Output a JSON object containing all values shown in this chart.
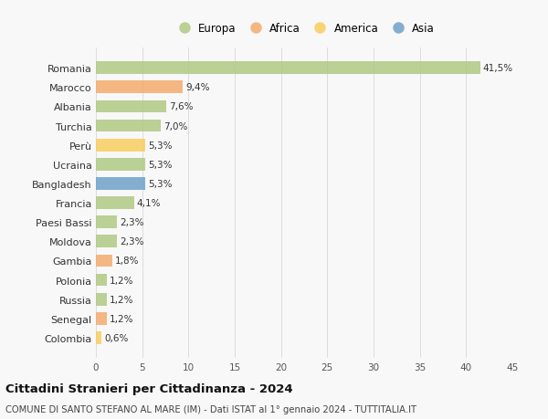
{
  "countries": [
    "Romania",
    "Marocco",
    "Albania",
    "Turchia",
    "Perù",
    "Ucraina",
    "Bangladesh",
    "Francia",
    "Paesi Bassi",
    "Moldova",
    "Gambia",
    "Polonia",
    "Russia",
    "Senegal",
    "Colombia"
  ],
  "values": [
    41.5,
    9.4,
    7.6,
    7.0,
    5.3,
    5.3,
    5.3,
    4.1,
    2.3,
    2.3,
    1.8,
    1.2,
    1.2,
    1.2,
    0.6
  ],
  "labels": [
    "41,5%",
    "9,4%",
    "7,6%",
    "7,0%",
    "5,3%",
    "5,3%",
    "5,3%",
    "4,1%",
    "2,3%",
    "2,3%",
    "1,8%",
    "1,2%",
    "1,2%",
    "1,2%",
    "0,6%"
  ],
  "continents": [
    "Europa",
    "Africa",
    "Europa",
    "Europa",
    "America",
    "Europa",
    "Asia",
    "Europa",
    "Europa",
    "Europa",
    "Africa",
    "Europa",
    "Europa",
    "Africa",
    "America"
  ],
  "colors": {
    "Europa": "#adc880",
    "Africa": "#f4a96a",
    "America": "#f9cc5a",
    "Asia": "#6b9ec8"
  },
  "xlim": [
    0,
    45
  ],
  "xticks": [
    0,
    5,
    10,
    15,
    20,
    25,
    30,
    35,
    40,
    45
  ],
  "title": "Cittadini Stranieri per Cittadinanza - 2024",
  "subtitle": "COMUNE DI SANTO STEFANO AL MARE (IM) - Dati ISTAT al 1° gennaio 2024 - TUTTITALIA.IT",
  "background_color": "#f8f8f8",
  "grid_color": "#d8d8d8",
  "bar_height": 0.65,
  "bar_alpha": 0.82,
  "label_fontsize": 7.5,
  "ytick_fontsize": 8,
  "xtick_fontsize": 7.5,
  "legend_entries": [
    "Europa",
    "Africa",
    "America",
    "Asia"
  ],
  "legend_fontsize": 8.5,
  "title_fontsize": 9.5,
  "subtitle_fontsize": 7.2
}
